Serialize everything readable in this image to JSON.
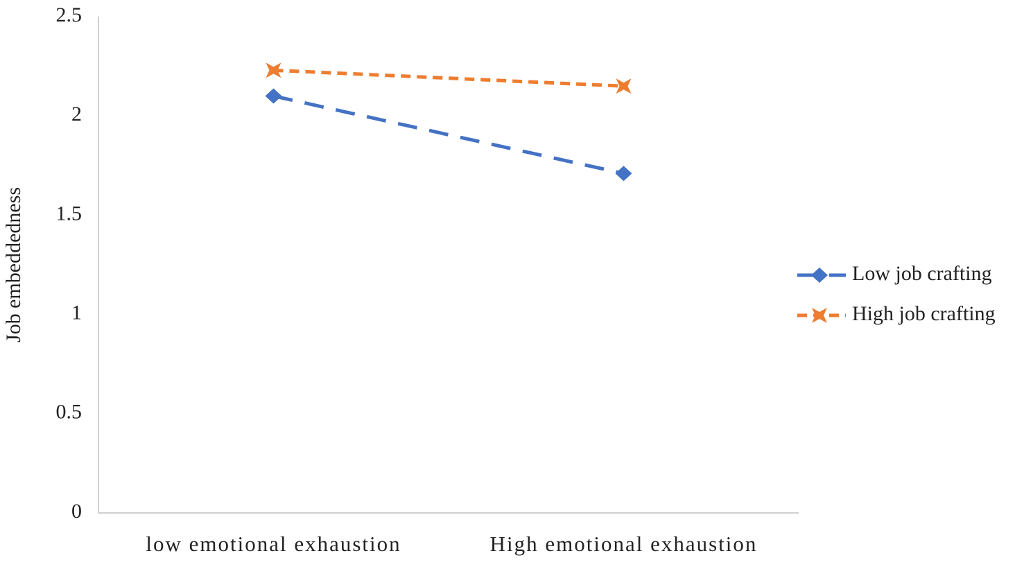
{
  "chart_data": {
    "type": "line",
    "y_label": "Job embeddedness",
    "categories": [
      "low emotional exhaustion",
      "High emotional exhaustion"
    ],
    "series": [
      {
        "name": "Low job crafting",
        "color": "#4472c4",
        "values": [
          2.1,
          1.71
        ]
      },
      {
        "name": "High job crafting",
        "color": "#ed7d31",
        "values": [
          2.23,
          2.15
        ]
      }
    ],
    "ylim": [
      0,
      2.5
    ],
    "yticks": [
      0,
      0.5,
      1,
      1.5,
      2,
      2.5
    ],
    "grid": false,
    "legend": "right"
  }
}
